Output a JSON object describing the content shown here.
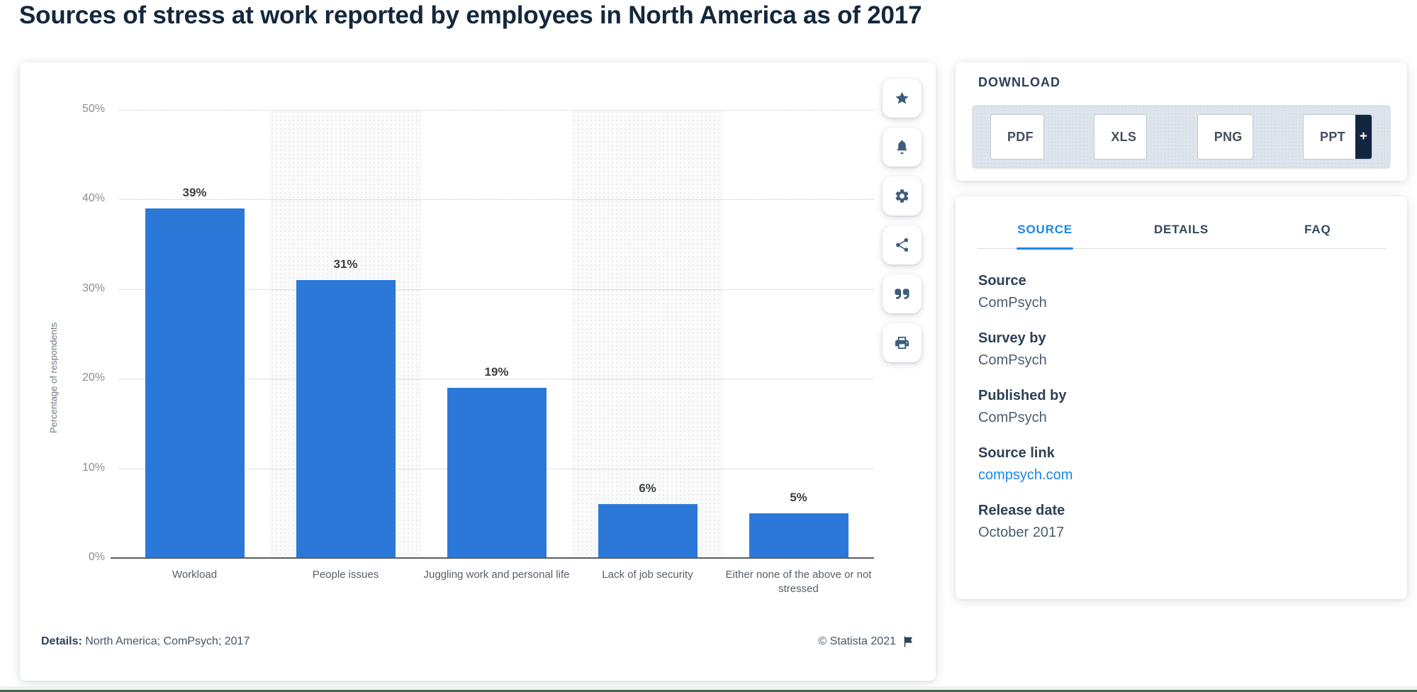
{
  "page": {
    "title": "Sources of stress at work reported by employees in North America as of 2017"
  },
  "chart_data": {
    "type": "bar",
    "title": "Sources of stress at work reported by employees in North America as of 2017",
    "categories": [
      "Workload",
      "People issues",
      "Juggling work and personal life",
      "Lack of job security",
      "Either none of the above or not stressed"
    ],
    "values": [
      39,
      31,
      19,
      6,
      5
    ],
    "value_labels": [
      "39%",
      "31%",
      "19%",
      "6%",
      "5%"
    ],
    "xlabel": "",
    "ylabel": "Percentage of respondents",
    "ylim": [
      0,
      50
    ],
    "yticks": [
      0,
      10,
      20,
      30,
      40,
      50
    ],
    "ytick_labels": [
      "0%",
      "10%",
      "20%",
      "30%",
      "40%",
      "50%"
    ],
    "grid": "horizontal-dotted",
    "legend": "none",
    "bar_color": "#2b78d9",
    "stripe_color": "#fafafa",
    "striped_columns": [
      1,
      3
    ]
  },
  "chart_footer": {
    "details_label": "Details:",
    "details_value": "North America; ComPsych; 2017",
    "copyright": "© Statista 2021"
  },
  "toolbar": {
    "buttons": [
      {
        "name": "favorite-button",
        "icon": "star-icon"
      },
      {
        "name": "alerts-button",
        "icon": "bell-icon"
      },
      {
        "name": "settings-button",
        "icon": "gear-icon"
      },
      {
        "name": "share-button",
        "icon": "share-icon"
      },
      {
        "name": "cite-button",
        "icon": "quote-icon"
      },
      {
        "name": "print-button",
        "icon": "print-icon"
      }
    ]
  },
  "download": {
    "heading": "DOWNLOAD",
    "buttons": [
      {
        "label": "PDF",
        "icon": "pdf-file-icon",
        "accent": "#d63b2f"
      },
      {
        "label": "XLS",
        "icon": "xls-file-icon",
        "accent": "#7fae3f"
      },
      {
        "label": "PNG",
        "icon": "png-image-icon",
        "accent": "#8fb8e0"
      },
      {
        "label": "PPT",
        "icon": "ppt-file-icon",
        "accent": "#e2792e",
        "more_label": "+"
      }
    ]
  },
  "source_panel": {
    "tabs": [
      {
        "label": "SOURCE",
        "active": true
      },
      {
        "label": "DETAILS",
        "active": false
      },
      {
        "label": "FAQ",
        "active": false
      }
    ],
    "fields": [
      {
        "label": "Source",
        "value": "ComPsych",
        "link": false
      },
      {
        "label": "Survey by",
        "value": "ComPsych",
        "link": false
      },
      {
        "label": "Published by",
        "value": "ComPsych",
        "link": false
      },
      {
        "label": "Source link",
        "value": "compsych.com",
        "link": true
      },
      {
        "label": "Release date",
        "value": "October 2017",
        "link": false
      }
    ]
  },
  "colors": {
    "accent_blue": "#1a86e8",
    "navy_text": "#2e4156",
    "bar_blue": "#2b78d9",
    "icon_navy": "#3f5d7d",
    "plus_flap_navy": "#13263f"
  }
}
